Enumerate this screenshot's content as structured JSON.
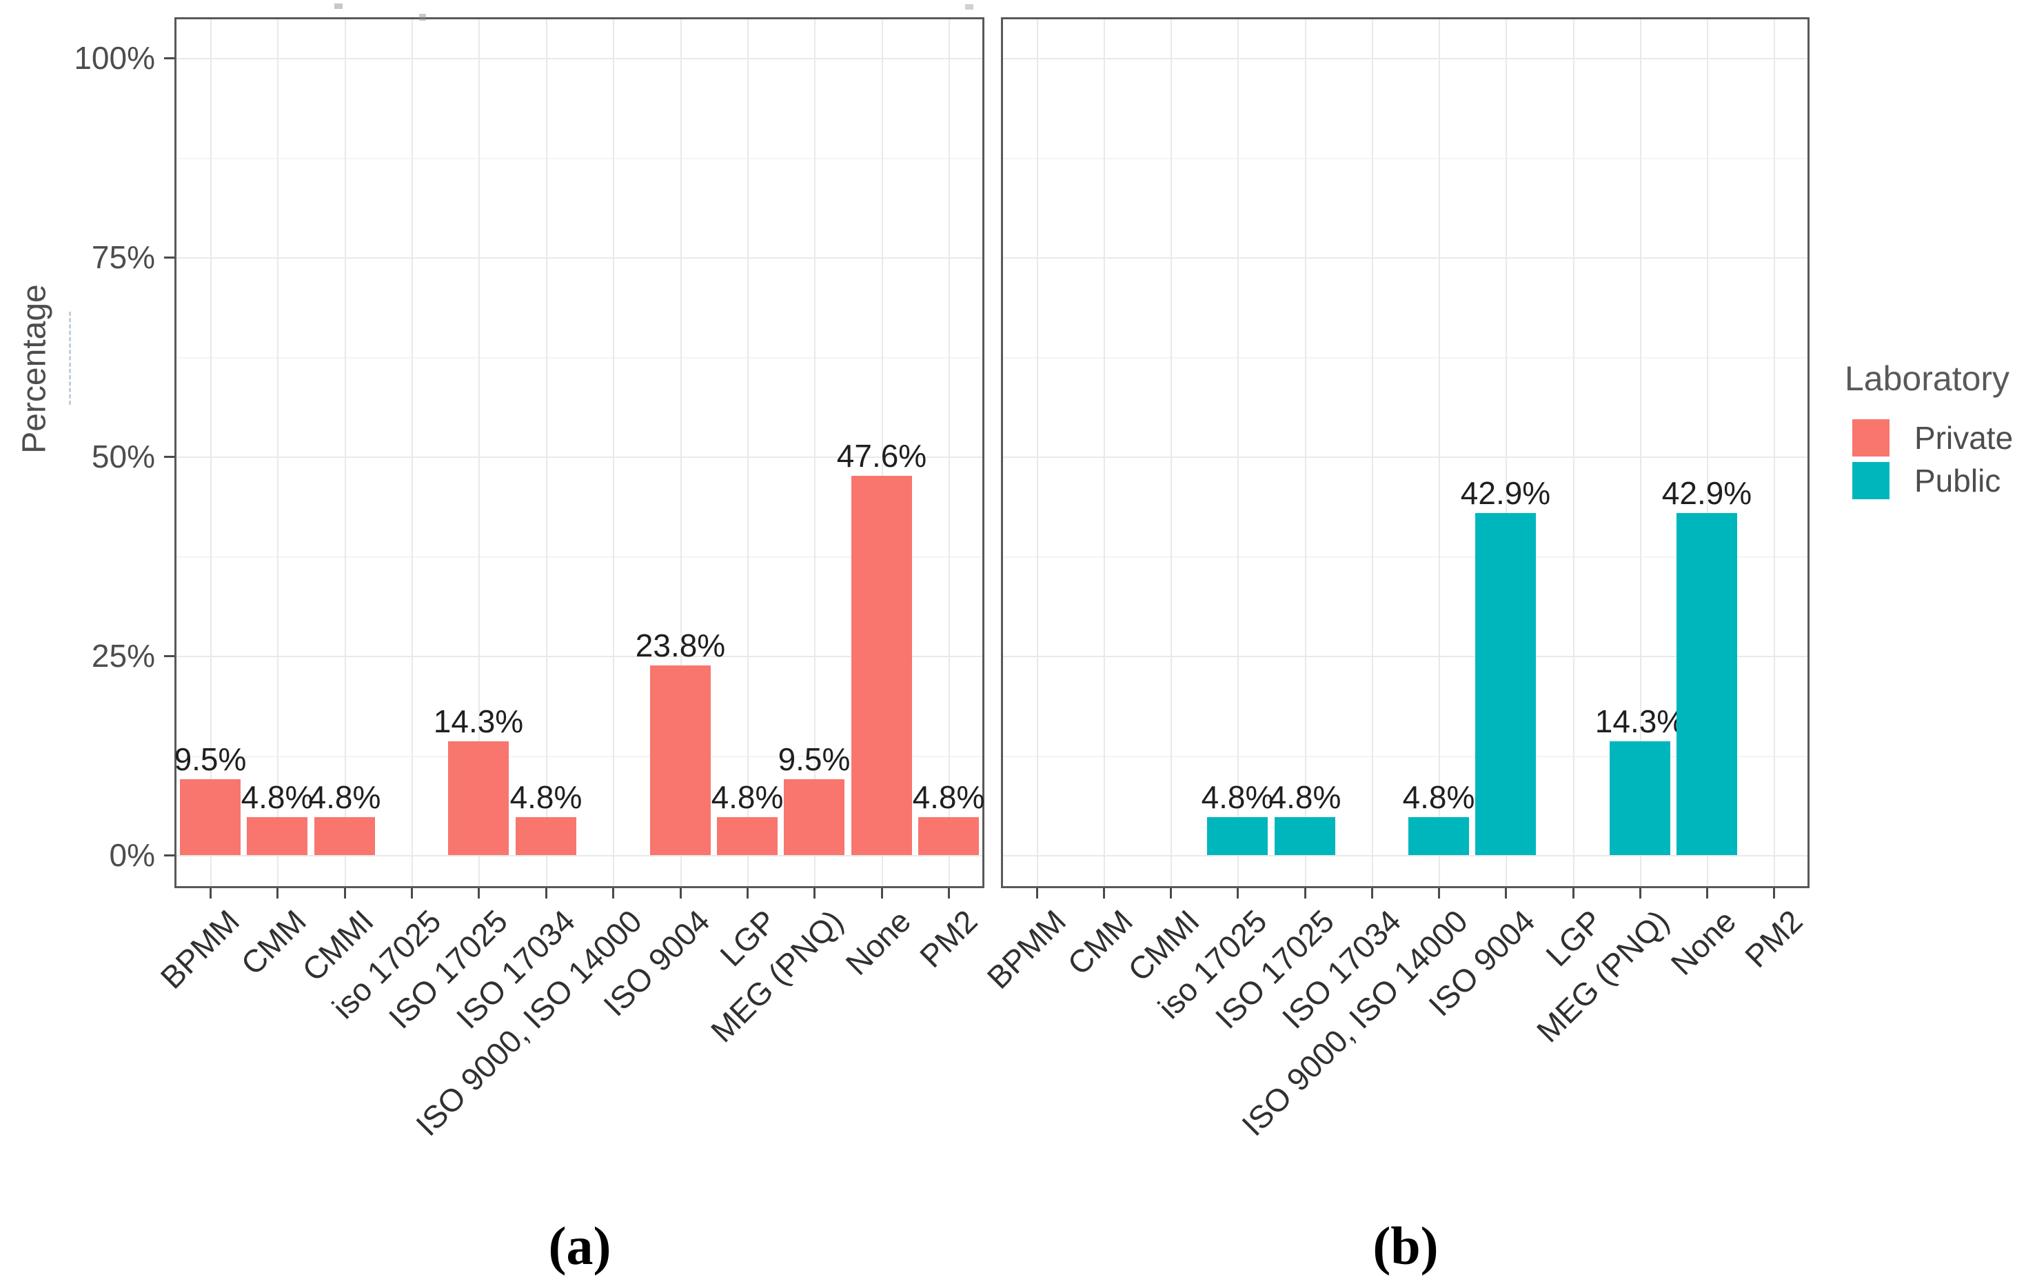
{
  "figure": {
    "captions": {
      "a": "(a)",
      "b": "(b)"
    }
  },
  "legend": {
    "title": "Laboratory",
    "items": [
      {
        "label": "Private",
        "color": "#f8766d"
      },
      {
        "label": "Public",
        "color": "#00b6bd"
      }
    ]
  },
  "chart_data": {
    "type": "bar",
    "title": "",
    "xlabel": "",
    "ylabel": "Percentage",
    "categories": [
      "BPMM",
      "CMM",
      "CMMI",
      "iso 17025",
      "ISO 17025",
      "ISO 17034",
      "ISO 9000, ISO 14000",
      "ISO 9004",
      "LGP",
      "MEG (PNQ)",
      "None",
      "PM2"
    ],
    "series": [
      {
        "name": "Private",
        "facet": "a",
        "color": "#f8766d",
        "values": [
          9.5,
          4.8,
          4.8,
          0,
          14.3,
          4.8,
          0,
          23.8,
          4.8,
          9.5,
          47.6,
          4.8
        ]
      },
      {
        "name": "Public",
        "facet": "b",
        "color": "#00b6bd",
        "values": [
          0,
          0,
          0,
          4.8,
          4.8,
          0,
          4.8,
          42.9,
          0,
          14.3,
          42.9,
          0
        ]
      }
    ],
    "value_label_suffix": "%",
    "yticks": {
      "values": [
        0,
        25,
        50,
        75,
        100
      ],
      "labels": [
        "0%",
        "25%",
        "50%",
        "75%",
        "100%"
      ]
    },
    "minor_gridlines": [
      12.5,
      37.5,
      62.5,
      87.5
    ],
    "ylim": [
      0,
      100
    ],
    "grid": true,
    "legend_position": "right"
  },
  "colors": {
    "private": "#f8766d",
    "public": "#00b6bd",
    "grid_major": "#e9e9e9",
    "grid_minor": "#f4f4f4",
    "panel_border": "#595959",
    "tick": "#4a4a4a",
    "axis_text": "#4d4d4d",
    "value_text": "#1f1f1f"
  }
}
